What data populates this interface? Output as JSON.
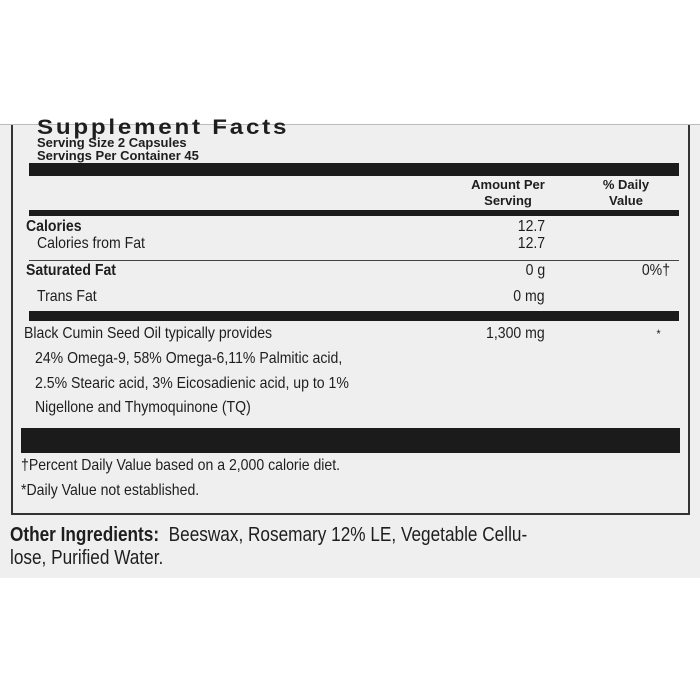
{
  "title": "Supplement Facts",
  "serving_size": "Serving Size 2 Capsules",
  "servings_per_container": "Servings Per Container 45",
  "headers": {
    "amount": "Amount Per",
    "amount2": "Serving",
    "dv": "% Daily",
    "dv2": "Value"
  },
  "rows": [
    {
      "name": "Calories",
      "amount": "12.7",
      "dv": ""
    },
    {
      "name": "Calories from Fat",
      "amount": "12.7",
      "dv": ""
    },
    {
      "name": "Saturated Fat",
      "amount": "0 g",
      "dv": "0%†"
    },
    {
      "name": "Trans Fat",
      "amount": "0 mg",
      "dv": ""
    },
    {
      "name": "Black Cumin Seed Oil typically provides",
      "amount": "1,300 mg",
      "dv": "*"
    }
  ],
  "oil_details": [
    "24% Omega-9, 58% Omega-6,11% Palmitic acid,",
    "2.5% Stearic acid, 3% Eicosadienic acid, up to 1%",
    "Nigellone and Thymoquinone (TQ)"
  ],
  "footnotes": [
    "†Percent Daily Value based on a 2,000 calorie diet.",
    "*Daily Value not established."
  ],
  "other_ingredients": {
    "label": "Other Ingredients:",
    "line1": "Beeswax, Rosemary 12% LE, Vegetable Cellu-",
    "line2": "lose, Purified Water."
  }
}
